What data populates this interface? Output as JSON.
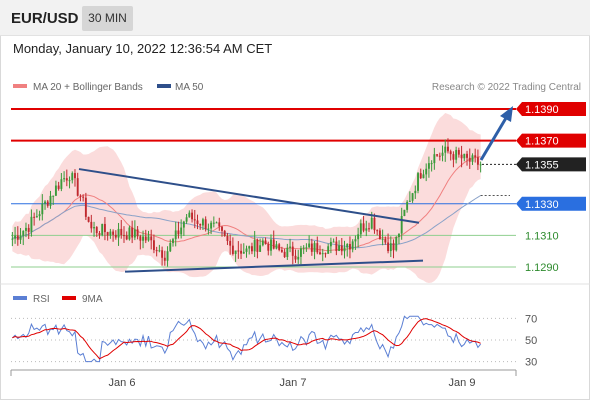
{
  "header": {
    "symbol": "EUR/USD",
    "timeframe": "30 MIN",
    "datetime": "Monday, January 10, 2022 12:36:54 AM CET"
  },
  "legend": {
    "ma20_label": "MA 20 + Bollinger Bands",
    "ma50_label": "MA 50",
    "ma20_color": "#f08080",
    "ma50_color": "#2e4f8a",
    "copyright": "Research © 2022 Trading Central"
  },
  "rsi_legend": {
    "rsi_label": "RSI",
    "ma9_label": "9MA",
    "rsi_color": "#5b7fd4",
    "ma9_color": "#e00000"
  },
  "chart_data": [
    {
      "type": "candlestick",
      "x_labels": [
        "Jan 6",
        "Jan 7",
        "Jan 9"
      ],
      "ylim": [
        1.1283,
        1.1397
      ],
      "levels": [
        {
          "value": 1.139,
          "label": "1.1390",
          "kind": "resistance",
          "color": "#e00000"
        },
        {
          "value": 1.137,
          "label": "1.1370",
          "kind": "resistance",
          "color": "#e00000"
        },
        {
          "value": 1.1355,
          "label": "1.1355",
          "kind": "last",
          "color": "#222222"
        },
        {
          "value": 1.133,
          "label": "1.1330",
          "kind": "pivot",
          "color": "#2a6fe0"
        },
        {
          "value": 1.131,
          "label": "1.1310",
          "kind": "support",
          "color": "#2e8b2e"
        },
        {
          "value": 1.129,
          "label": "1.1290",
          "kind": "support",
          "color": "#2e8b2e"
        }
      ],
      "trendlines": [
        {
          "name": "upper",
          "from": [
            1.1352
          ],
          "to": [
            1.1318
          ]
        },
        {
          "name": "lower",
          "from": [
            1.1287
          ],
          "to": [
            1.1294
          ]
        }
      ],
      "colors": {
        "up": "#3a9a3a",
        "down": "#c0282e",
        "bands": "#f9d0d0"
      }
    },
    {
      "type": "line",
      "series": [
        {
          "name": "RSI"
        },
        {
          "name": "9MA"
        }
      ],
      "ylim": [
        25,
        75
      ],
      "y_ticks": [
        70,
        50,
        30
      ]
    }
  ]
}
